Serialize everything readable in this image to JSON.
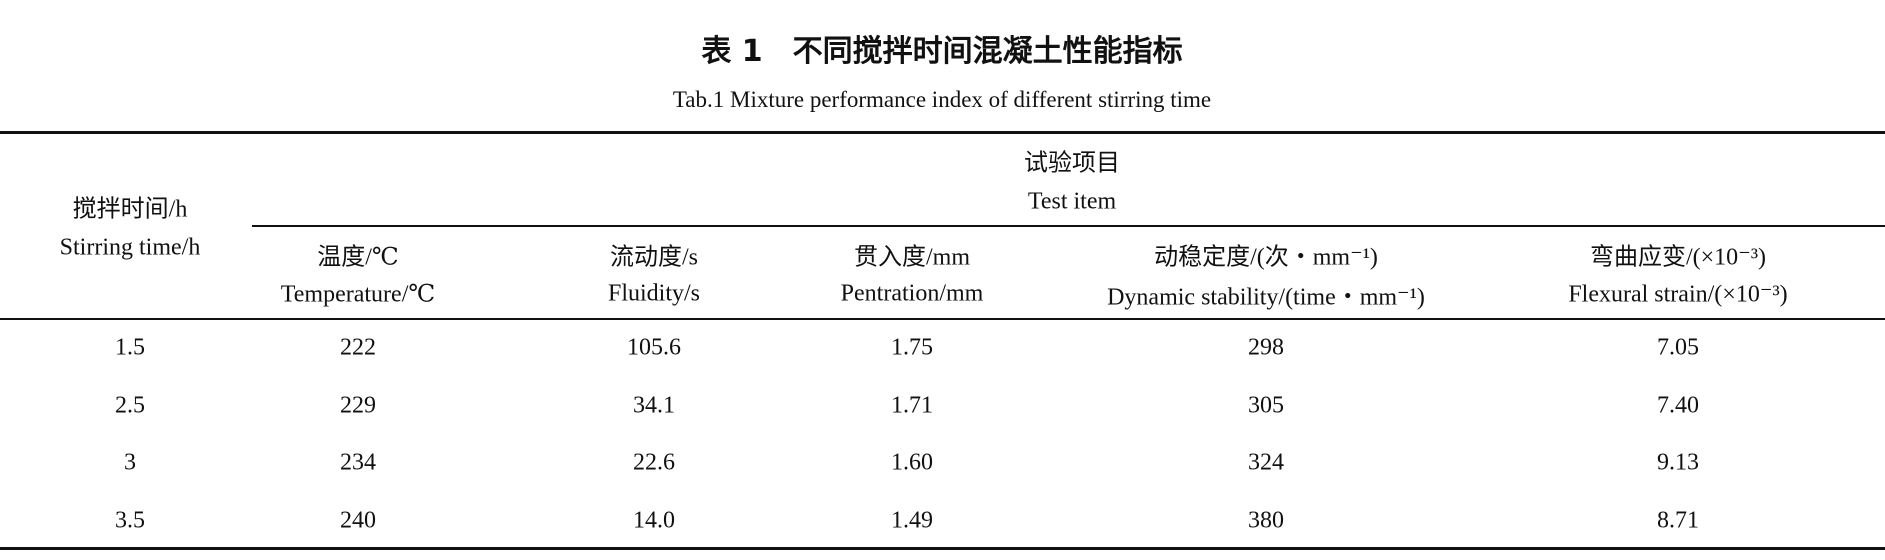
{
  "title": {
    "cn": "表 1　不同搅拌时间混凝土性能指标",
    "en": "Tab.1 Mixture performance index of different stirring time"
  },
  "table": {
    "row_header": {
      "cn": "搅拌时间/h",
      "en": "Stirring time/h"
    },
    "group_header": {
      "cn": "试验项目",
      "en": "Test item"
    },
    "columns": [
      {
        "cn": "温度/℃",
        "en": "Temperature/℃"
      },
      {
        "cn": "流动度/s",
        "en": "Fluidity/s"
      },
      {
        "cn": "贯入度/mm",
        "en": "Pentration/mm"
      },
      {
        "cn": "动稳定度/(次・mm⁻¹)",
        "en": "Dynamic stability/(time・mm⁻¹)"
      },
      {
        "cn": "弯曲应变/(×10⁻³)",
        "en": "Flexural strain/(×10⁻³)"
      }
    ],
    "rows": [
      [
        "1.5",
        "222",
        "105.6",
        "1.75",
        "298",
        "7.05"
      ],
      [
        "2.5",
        "229",
        "34.1",
        "1.71",
        "305",
        "7.40"
      ],
      [
        "3",
        "234",
        "22.6",
        "1.60",
        "324",
        "9.13"
      ],
      [
        "3.5",
        "240",
        "14.0",
        "1.49",
        "380",
        "8.71"
      ]
    ]
  }
}
